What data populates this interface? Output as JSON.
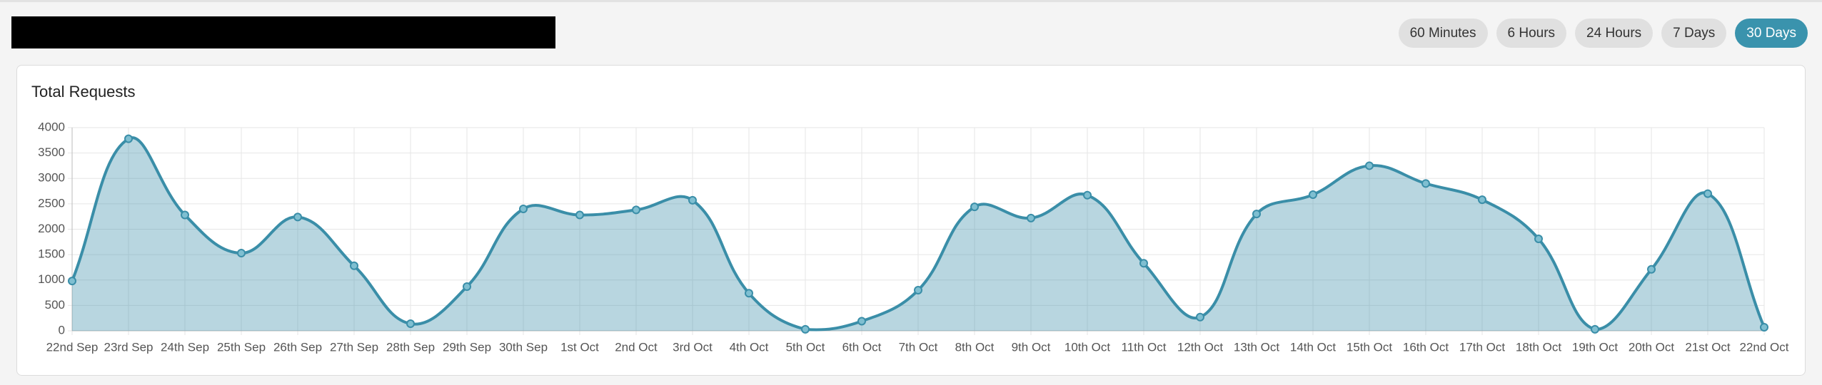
{
  "header": {
    "buttons": [
      {
        "label": "60 Minutes",
        "active": false
      },
      {
        "label": "6 Hours",
        "active": false
      },
      {
        "label": "24 Hours",
        "active": false
      },
      {
        "label": "7 Days",
        "active": false
      },
      {
        "label": "30 Days",
        "active": true
      }
    ]
  },
  "chart_data": {
    "type": "area",
    "title": "Total Requests",
    "categories": [
      "22nd Sep",
      "23rd Sep",
      "24th Sep",
      "25th Sep",
      "26th Sep",
      "27th Sep",
      "28th Sep",
      "29th Sep",
      "30th Sep",
      "1st Oct",
      "2nd Oct",
      "3rd Oct",
      "4th Oct",
      "5th Oct",
      "6th Oct",
      "7th Oct",
      "8th Oct",
      "9th Oct",
      "10th Oct",
      "11th Oct",
      "12th Oct",
      "13th Oct",
      "14th Oct",
      "15th Oct",
      "16th Oct",
      "17th Oct",
      "18th Oct",
      "19th Oct",
      "20th Oct",
      "21st Oct",
      "22nd Oct"
    ],
    "values": [
      980,
      3780,
      2280,
      1530,
      2240,
      1280,
      140,
      870,
      2400,
      2280,
      2380,
      2570,
      740,
      30,
      190,
      800,
      2440,
      2220,
      2670,
      1330,
      270,
      2300,
      2680,
      3250,
      2900,
      2580,
      1810,
      30,
      1210,
      2700,
      70
    ],
    "color": "#3a8ea8",
    "ylim": [
      0,
      4000
    ],
    "yticks": [
      0,
      500,
      1000,
      1500,
      2000,
      2500,
      3000,
      3500,
      4000
    ],
    "grid": true
  }
}
